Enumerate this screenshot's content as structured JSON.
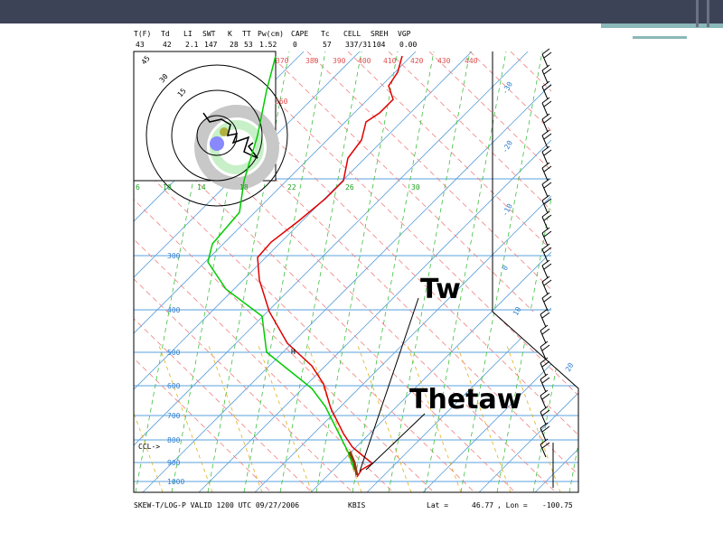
{
  "header": {
    "labels": [
      "T(F)",
      "Td",
      "LI",
      "SWT",
      "K",
      "TT",
      "Pw(cm)",
      "CAPE",
      "Tc",
      "CELL",
      "SREH",
      "VGP"
    ],
    "values": [
      "43",
      "42",
      "2.1",
      "147",
      "28",
      "53",
      "1.52",
      "0",
      "57",
      "337/31",
      "104",
      "0.00"
    ]
  },
  "theta_labels": [
    "370",
    "380",
    "390",
    "400",
    "410",
    "420",
    "430",
    "440",
    "360"
  ],
  "mixing_labels": [
    "6",
    "10",
    "14",
    "18",
    "22",
    "26",
    "30"
  ],
  "temp_labels": [
    "-30",
    "-20",
    "-10",
    "0",
    "10",
    "20"
  ],
  "pressure_labels": [
    "300",
    "400",
    "500",
    "600",
    "700",
    "800",
    "900",
    "1000"
  ],
  "hodograph_labels": [
    "45",
    "30",
    "15"
  ],
  "ccl_label": "CCL->",
  "marker_label": "H",
  "annotations": [
    "Tw",
    "Thetaw"
  ],
  "footer": {
    "title": "SKEW-T/LOG-P VALID 1200 UTC 09/27/2006",
    "station": "KBIS",
    "lat_label": "Lat =",
    "lat": "46.77",
    "lon_label": ", Lon =",
    "lon": "-100.75"
  }
}
